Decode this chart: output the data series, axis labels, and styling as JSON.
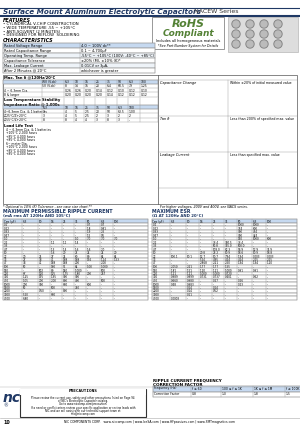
{
  "title_bold": "Surface Mount Aluminum Electrolytic Capacitors",
  "title_series": " NACEW Series",
  "features_title": "FEATURES",
  "features": [
    "• CYLINDRICAL V-CHIP CONSTRUCTION",
    "• WIDE TEMPERATURE -55 ~ +105°C",
    "• ANTI-SOLVENT (2 MINUTES)",
    "• DESIGNED FOR REFLOW  SOLDERING"
  ],
  "rohs_line1": "RoHS",
  "rohs_line2": "Compliant",
  "rohs_sub": "Includes all homogeneous materials",
  "rohs_sub2": "*See Part Number System for Details",
  "char_title": "CHARACTERISTICS",
  "char_rows": [
    [
      "Rated Voltage Range",
      "4.0 ~ 100V dc**"
    ],
    [
      "Rated Capacitance Range",
      "0.1 ~ 4,700μF"
    ],
    [
      "Operating Temp. Range",
      "-55°C ~ +105°C (100V: -40°C ~ +85°C)"
    ],
    [
      "Capacitance Tolerance",
      "±20% (M), ±10% (K)*"
    ],
    [
      "Max. Leakage Current",
      "0.01CV or 3μA,"
    ],
    [
      "After 2 Minutes @ 20°C",
      "whichever is greater"
    ]
  ],
  "imp_title": "Max. Tan δ @120Hz/20°C",
  "imp_col_labels": [
    "",
    "WV (V.dc)",
    "6.3",
    "10",
    "16",
    "25",
    "35",
    "50",
    "6.3",
    "100"
  ],
  "imp_rows": [
    [
      "",
      "5V (V.dc)",
      "8",
      "14",
      "16",
      "20",
      "6.4",
      "60.5",
      "79",
      "1.25"
    ],
    [
      "4 ~ 6.3mm Dia.",
      "",
      "0.26",
      "0.26",
      "0.20",
      "0.14",
      "0.12",
      "0.10",
      "0.12",
      "0.10"
    ],
    [
      "8 & larger",
      "",
      "0.20",
      "0.20",
      "0.20",
      "0.20",
      "0.14",
      "0.12",
      "0.12",
      "0.12"
    ]
  ],
  "lt_title": "Low Temperature Stability\nImpedance Ratio @ 1,000s",
  "lt_col_labels": [
    "",
    "6.3",
    "10",
    "16",
    "25",
    "35",
    "50",
    "6.3",
    "100"
  ],
  "lt_rows": [
    [
      "4~6.3mm Dia. & 1 batteries",
      "3",
      "4",
      "5",
      "2.5",
      "20",
      "50",
      "63.5",
      "1.00"
    ],
    [
      "Z-25°C/Z+20°C",
      "3",
      "4",
      "5",
      "2.5",
      "2",
      "3",
      "2",
      "2"
    ],
    [
      "Z-55°C/Z+20°C",
      "8",
      "8",
      "4",
      "4",
      "3",
      "8",
      "3",
      "-"
    ]
  ],
  "ll_title": "Load Life Test",
  "ll_left": [
    "4 ~ 6.3mm Dia. & 1 batteries",
    "+105°C 2,000 hours",
    "+85°C 4,000 hours",
    "+85°C 4,000 hours",
    "6~ meter Dia.",
    "+105°C 2,000 hours",
    "+85°C 4,000 hours",
    "+85°C 4,000 hours"
  ],
  "ll_right": [
    [
      "Capacitance Change",
      "Within ±20% of initial measured value"
    ],
    [
      "Tan δ",
      "Less than 200% of specified max. value"
    ],
    [
      "Leakage Current",
      "Less than specified max. value"
    ]
  ],
  "footnote1": "* Optional is 10% (K) Tolerance - see case size chart.**",
  "footnote2": "For higher voltages, 200V and 400V, see NACS series.",
  "ripple_title": "MAXIMUM PERMISSIBLE RIPPLE CURRENT",
  "ripple_sub": "(mA rms AT 120Hz AND 105°C)",
  "esr_title": "MAXIMUM ESR",
  "esr_sub": "(Ω AT 120Hz AND 20°C)",
  "ripple_data": [
    [
      "Cap (μF)",
      "6.3",
      "10",
      "16",
      "25",
      "35",
      "50",
      "6.3",
      "100"
    ],
    [
      "0.1",
      "-",
      "-",
      "-",
      "-",
      "-",
      "0.7",
      "0.7",
      "-"
    ],
    [
      "0.22",
      "-",
      "-",
      "-",
      "-",
      "-",
      "1.8",
      "0.81",
      "-"
    ],
    [
      "0.33",
      "-",
      "-",
      "-",
      "-",
      "-",
      "1.9",
      "2.5",
      "-"
    ],
    [
      "0.47",
      "-",
      "-",
      "-",
      "-",
      "-",
      "1.5",
      "0.5",
      "-"
    ],
    [
      "1.0",
      "-",
      "-",
      "-",
      "-",
      "1.0",
      "7.0",
      "7.0",
      "7.0"
    ],
    [
      "2.2",
      "-",
      "-",
      "1.1",
      "1.1",
      "1.4",
      "-",
      "-",
      "-"
    ],
    [
      "3.3",
      "-",
      "-",
      "-",
      "-",
      "-",
      "-",
      "-",
      "-"
    ],
    [
      "4.7",
      "-",
      "-",
      "1.3",
      "1.4",
      "1.6",
      "1.6",
      "2.0",
      "-"
    ],
    [
      "10",
      "-",
      "-",
      "1.6",
      "20",
      "21",
      "24",
      "24",
      "20"
    ],
    [
      "22",
      "20",
      "25",
      "27",
      "24",
      "60",
      "80",
      "64",
      "64"
    ],
    [
      "33",
      "27",
      "38",
      "41",
      "168",
      "168",
      "192",
      "1.14",
      "1.53"
    ],
    [
      "47",
      "38",
      "41",
      "168",
      "168",
      "200",
      "-",
      "2.00",
      "-"
    ],
    [
      "100",
      "50",
      "-",
      "160",
      "91",
      "64",
      "1.00",
      "1.000",
      "-"
    ],
    [
      "150",
      "-",
      "502",
      "80",
      "140",
      "1.000",
      "-",
      "500",
      "-"
    ],
    [
      "220",
      "67",
      "120",
      "125",
      "1.75",
      "1.80",
      "200",
      "267",
      "-"
    ],
    [
      "330",
      "1.25",
      "195",
      "1.95",
      "300",
      "300",
      "-",
      "-",
      "-"
    ],
    [
      "470",
      "1.05",
      "200",
      "2.00",
      "800",
      "400",
      "-",
      "500",
      "-"
    ],
    [
      "1000",
      "200",
      "300",
      "-",
      "660",
      "-",
      "600",
      "-",
      "-"
    ],
    [
      "1500",
      "50",
      "-",
      "500",
      "-",
      "740",
      "-",
      "-",
      "-"
    ],
    [
      "2200",
      "-",
      "0.50",
      "-",
      "800",
      "-",
      "-",
      "-",
      "-"
    ],
    [
      "3300",
      "5.20",
      "-",
      "660",
      "-",
      "-",
      "-",
      "-",
      "-"
    ],
    [
      "4700",
      "6.80",
      "-",
      "-",
      "-",
      "-",
      "-",
      "-",
      "-"
    ]
  ],
  "esr_data": [
    [
      "Cap (μF)",
      "6.3",
      "10",
      "16",
      "25",
      "35",
      "50",
      "6.3",
      "100"
    ],
    [
      "0.1",
      "-",
      "-",
      "-",
      "-",
      "-",
      "1000",
      "1000",
      "-"
    ],
    [
      "0.22",
      "-",
      "-",
      "-",
      "-",
      "-",
      "764",
      "600",
      "-"
    ],
    [
      "0.33",
      "-",
      "-",
      "-",
      "-",
      "-",
      "300",
      "454",
      "-"
    ],
    [
      "0.47",
      "-",
      "-",
      "-",
      "-",
      "-",
      "300",
      "424",
      "-"
    ],
    [
      "1.0",
      "-",
      "-",
      "-",
      "-",
      "-",
      "150",
      "1000",
      "600"
    ],
    [
      "2.2",
      "-",
      "-",
      "-",
      "73.4",
      "360.5",
      "73.4",
      "-",
      "-"
    ],
    [
      "3.3",
      "-",
      "-",
      "-",
      "50.8",
      "355.0",
      "500.0",
      "-",
      "-"
    ],
    [
      "4.7",
      "-",
      "-",
      "-",
      "108.0",
      "62.3",
      "96.9",
      "12.9",
      "35.9"
    ],
    [
      "10",
      "-",
      "-",
      "20.8",
      "23.2",
      "10.9",
      "18.6",
      "10.9",
      "18.8"
    ],
    [
      "22",
      "100.1",
      "10.1",
      "12.7",
      "10.7",
      "7.94",
      "1.94",
      "0.003",
      "0.003"
    ],
    [
      "33",
      "-",
      "-",
      "5.24",
      "4.95",
      "4.24",
      "4.24",
      "2.15",
      "2.15"
    ],
    [
      "47",
      "-",
      "-",
      "2,868",
      "2.21",
      "2.50",
      "1.94",
      "1.94",
      "1.10"
    ],
    [
      "100",
      "2,050",
      "2.21",
      "1.77",
      "1.77",
      "1.55",
      "-",
      "-",
      "-"
    ],
    [
      "150",
      "1.81",
      "1.51",
      "1.20",
      "1.21",
      "1.000",
      "0.91",
      "0.91",
      "-"
    ],
    [
      "220",
      "1.21",
      "1.21",
      "1.000",
      "1.000",
      "0.720",
      "-",
      "-",
      "-"
    ],
    [
      "330",
      "0.989",
      "0.899",
      "0.731",
      "0.737",
      "0.401",
      "-",
      "0.62",
      "-"
    ],
    [
      "470",
      "0.660",
      "0.980",
      "-",
      "0.27",
      "-",
      "0.26",
      "-",
      "-"
    ],
    [
      "1000",
      "0.48",
      "0.983",
      "-",
      "-",
      "-",
      "0.23",
      "-",
      "-"
    ],
    [
      "1500",
      "-",
      "0.14",
      "-",
      "0.14",
      "-",
      "-",
      "-",
      "-"
    ],
    [
      "2200",
      "-",
      "0.14",
      "-",
      "0.52",
      "-",
      "-",
      "-",
      "-"
    ],
    [
      "3300",
      "-",
      "0.11",
      "-",
      "-",
      "-",
      "-",
      "-",
      "-"
    ],
    [
      "4700",
      "0.0003",
      "-",
      "-",
      "-",
      "-",
      "-",
      "-",
      "-"
    ]
  ],
  "correction_title": "RIPPLE CURRENT FREQUENCY\nCORRECTION FACTOR",
  "correction_headers": [
    "Frequency (Hz)",
    "f ≤ 60",
    "100 ≤ f ≤ 1K",
    "1K ≤ f ≤ 1M",
    "f ≥ 100K"
  ],
  "correction_values": [
    "Correction Factor",
    "0.8",
    "1.0",
    "1.8",
    "1.5"
  ],
  "footer_text": "NIC COMPONENTS CORP.   www.niccomp.com | www.IceSA.com | www.HFpassives.com | www.SMTmagnetics.com",
  "page_num": "10",
  "bg_color": "#ffffff",
  "blue_text": "#1f3864",
  "rohs_green": "#538135",
  "header_bg": "#c6d9f0",
  "line_color": "#999999",
  "title_line_color": "#1f3864"
}
